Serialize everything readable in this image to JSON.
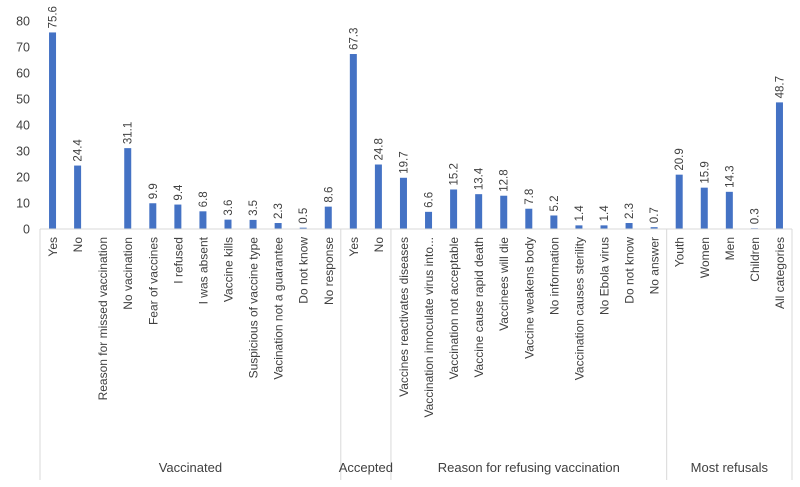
{
  "chart_data": {
    "type": "bar",
    "title": "",
    "xlabel": "",
    "ylabel": "",
    "ylim": [
      0,
      80
    ],
    "yticks": [
      0,
      10,
      20,
      30,
      40,
      50,
      60,
      70,
      80
    ],
    "grid": false,
    "bar_color": "#4472C4",
    "groups": [
      {
        "name": "Vaccinated",
        "categories": [
          "Yes",
          "No",
          "Reason for missed vaccination",
          "No vacination",
          "Fear of vaccines",
          "I refused",
          "I was absent",
          "Vaccine kills",
          "Suspicious of vaccine type",
          "Vacination not a guarantee",
          "Do not know",
          "No response"
        ],
        "values": [
          75.6,
          24.4,
          null,
          31.1,
          9.9,
          9.4,
          6.8,
          3.6,
          3.5,
          2.3,
          0.5,
          8.6
        ],
        "labels": [
          "75.6",
          "24.4",
          "",
          "31.1",
          "9.9",
          "9.4",
          "6.8",
          "3.6",
          "3.5",
          "2.3",
          "0.5",
          "8.6"
        ]
      },
      {
        "name": "Accepted",
        "categories": [
          "Yes",
          "No"
        ],
        "values": [
          67.3,
          24.8
        ],
        "labels": [
          "67.3",
          "24.8"
        ]
      },
      {
        "name": "Reason for refusing vaccination",
        "categories": [
          "Vaccines reactivates diseases",
          "Vaccination innoculate virus into...",
          "Vaccination not acceptable",
          "Vaccine cause rapid death",
          "Vaccinees will die",
          "Vaccine weakens body",
          "No information",
          "Vaccination causes sterility",
          "No Ebola virus",
          "Do not know",
          "No answer"
        ],
        "values": [
          19.7,
          6.6,
          15.2,
          13.4,
          12.8,
          7.8,
          5.2,
          1.4,
          1.4,
          2.3,
          0.7
        ],
        "labels": [
          "19.7",
          "6.6",
          "15.2",
          "13.4",
          "12.8",
          "7.8",
          "5.2",
          "1.4",
          "1.4",
          "2.3",
          "0.7"
        ]
      },
      {
        "name": "Most refusals",
        "categories": [
          "Youth",
          "Women",
          "Men",
          "Children",
          "All categories"
        ],
        "values": [
          20.9,
          15.9,
          14.3,
          0.3,
          48.7
        ],
        "labels": [
          "20.9",
          "15.9",
          "14.3",
          "0.3",
          "48.7"
        ]
      }
    ]
  }
}
